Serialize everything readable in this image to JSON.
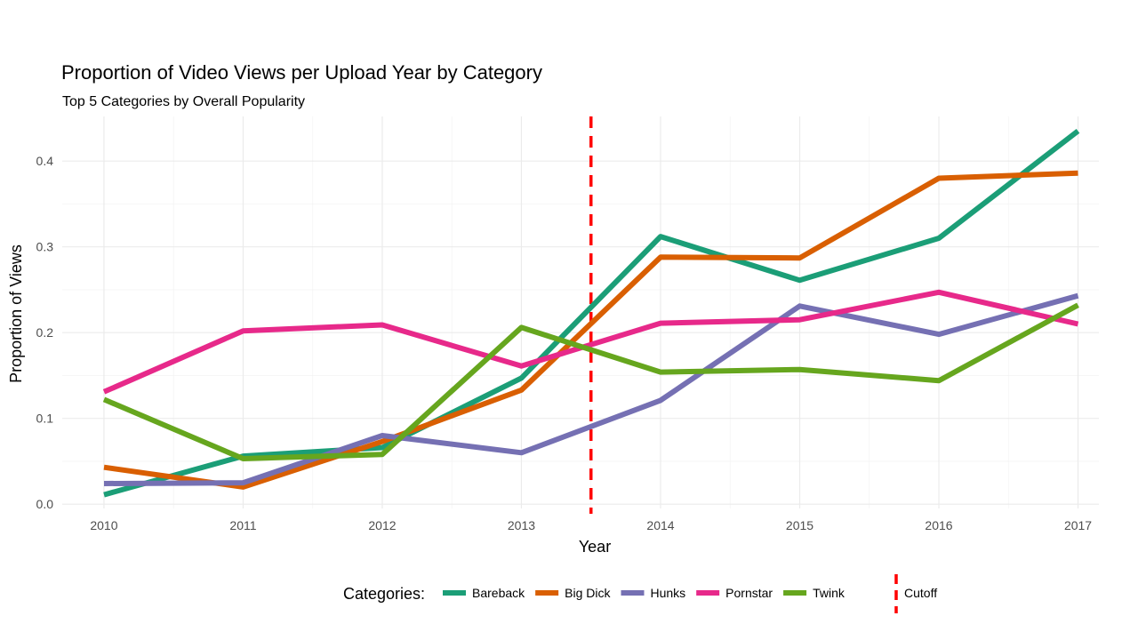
{
  "chart_data": {
    "type": "line",
    "title": "Proportion of Video Views per Upload Year by Category",
    "subtitle": "Top 5 Categories by Overall Popularity",
    "xlabel": "Year",
    "ylabel": "Proportion of Views",
    "x": [
      2010,
      2011,
      2012,
      2013,
      2014,
      2015,
      2016,
      2017
    ],
    "xlim": [
      2009.7,
      2017.15
    ],
    "ylim": [
      -0.005,
      0.452
    ],
    "yticks": [
      0.0,
      0.1,
      0.2,
      0.3,
      0.4
    ],
    "ytick_labels": [
      "0.0",
      "0.1",
      "0.2",
      "0.3",
      "0.4"
    ],
    "xtick_labels": [
      "2010",
      "2011",
      "2012",
      "2013",
      "2014",
      "2015",
      "2016",
      "2017"
    ],
    "grid": true,
    "legend_position": "bottom",
    "legend_title": "Categories:",
    "series": [
      {
        "name": "Bareback",
        "color": "#1B9E77",
        "values": [
          0.011,
          0.056,
          0.066,
          0.147,
          0.312,
          0.261,
          0.31,
          0.435
        ]
      },
      {
        "name": "Big Dick",
        "color": "#D95F02",
        "values": [
          0.043,
          0.02,
          0.073,
          0.133,
          0.288,
          0.287,
          0.38,
          0.386
        ]
      },
      {
        "name": "Hunks",
        "color": "#7570B3",
        "values": [
          0.024,
          0.025,
          0.08,
          0.06,
          0.121,
          0.231,
          0.198,
          0.243
        ]
      },
      {
        "name": "Pornstar",
        "color": "#E7298A",
        "values": [
          0.131,
          0.202,
          0.209,
          0.161,
          0.211,
          0.215,
          0.247,
          0.21
        ]
      },
      {
        "name": "Twink",
        "color": "#66A61E",
        "values": [
          0.122,
          0.053,
          0.058,
          0.206,
          0.154,
          0.157,
          0.144,
          0.232
        ]
      }
    ],
    "annotations": [
      {
        "type": "vline",
        "x": 2013.5,
        "label": "Cutoff",
        "color": "#FF0000",
        "linestyle": "dashed"
      }
    ]
  }
}
